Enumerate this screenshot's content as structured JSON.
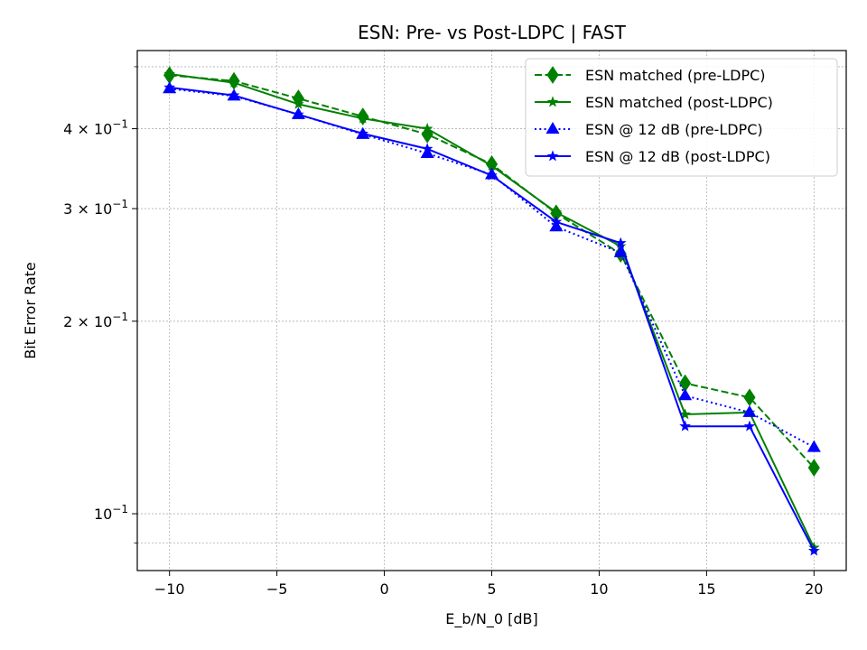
{
  "chart_data": {
    "type": "line",
    "title": "ESN: Pre- vs Post-LDPC | FAST",
    "xlabel": "E_b/N_0 [dB]",
    "ylabel": "Bit Error Rate",
    "x": [
      -10,
      -7,
      -4,
      -1,
      2,
      5,
      8,
      11,
      14,
      17,
      20
    ],
    "xlim": [
      -11.5,
      21.5
    ],
    "ylim": [
      0.0815,
      0.53
    ],
    "yscale": "log",
    "grid": true,
    "legend_position": "top-right",
    "xticks": [
      {
        "value": -10,
        "label": "−10"
      },
      {
        "value": -5,
        "label": "−5"
      },
      {
        "value": 0,
        "label": "0"
      },
      {
        "value": 5,
        "label": "5"
      },
      {
        "value": 10,
        "label": "10"
      },
      {
        "value": 15,
        "label": "15"
      },
      {
        "value": 20,
        "label": "20"
      }
    ],
    "yticks_major": [
      {
        "value": 0.1,
        "base": "10",
        "exp": "−1",
        "coef": ""
      },
      {
        "value": 0.2,
        "base": "10",
        "exp": "−1",
        "coef": "2 × "
      },
      {
        "value": 0.3,
        "base": "10",
        "exp": "−1",
        "coef": "3 × "
      },
      {
        "value": 0.4,
        "base": "10",
        "exp": "−1",
        "coef": "4 × "
      }
    ],
    "yticks_minor": [
      0.09,
      0.5
    ],
    "series": [
      {
        "name": "ESN matched (pre-LDPC)",
        "color": "#008000",
        "linestyle": "dashed",
        "marker": "diamond",
        "values": [
          0.485,
          0.475,
          0.446,
          0.418,
          0.392,
          0.352,
          0.295,
          0.255,
          0.16,
          0.152,
          0.118
        ]
      },
      {
        "name": "ESN matched (post-LDPC)",
        "color": "#008000",
        "linestyle": "solid",
        "marker": "star",
        "values": [
          0.487,
          0.472,
          0.437,
          0.415,
          0.4,
          0.35,
          0.296,
          0.262,
          0.143,
          0.144,
          0.0885
        ]
      },
      {
        "name": "ESN @ 12 dB (pre-LDPC)",
        "color": "#0000ff",
        "linestyle": "dotted",
        "marker": "triangle",
        "values": [
          0.462,
          0.45,
          0.421,
          0.392,
          0.366,
          0.339,
          0.281,
          0.256,
          0.153,
          0.144,
          0.127
        ]
      },
      {
        "name": "ESN @ 12 dB (post-LDPC)",
        "color": "#0000ff",
        "linestyle": "solid",
        "marker": "star",
        "values": [
          0.464,
          0.451,
          0.421,
          0.393,
          0.372,
          0.338,
          0.286,
          0.265,
          0.137,
          0.137,
          0.0875
        ]
      }
    ]
  }
}
